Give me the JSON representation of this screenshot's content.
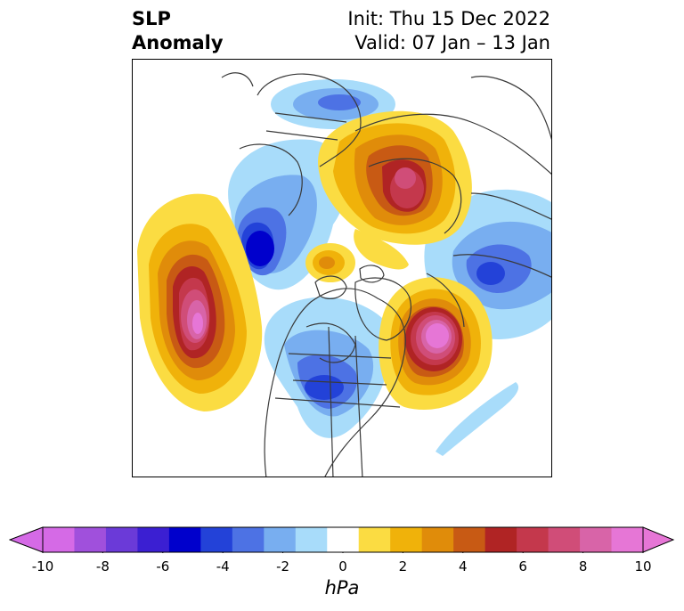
{
  "title": {
    "left_line1": "SLP",
    "left_line2": "Anomaly",
    "right_line1": "Init: Thu 15 Dec 2022",
    "right_line2": "Valid: 07 Jan – 13 Jan"
  },
  "colorbar": {
    "unit": "hPa",
    "ticks": [
      "-10",
      "-8",
      "-6",
      "-4",
      "-2",
      "0",
      "2",
      "4",
      "6",
      "8",
      "10"
    ],
    "levels": [
      -10,
      -9,
      -8,
      -7,
      -6,
      -5,
      -4,
      -3,
      -2,
      -1,
      1,
      2,
      3,
      4,
      5,
      6,
      7,
      8,
      9,
      10
    ],
    "colors": [
      "#d56ae6",
      "#a050dc",
      "#6b3ad8",
      "#3b1fd2",
      "#0000cc",
      "#2342d8",
      "#4d72e4",
      "#78aef0",
      "#a8dcfa",
      "#ffffff",
      "#fbdc42",
      "#f0b20a",
      "#e08c0a",
      "#c85a14",
      "#b02424",
      "#c4384c",
      "#d04d78",
      "#d864a8",
      "#e676d6"
    ],
    "extend": "both",
    "min_color": "#d56ae6",
    "max_color": "#e676d6"
  },
  "features": [
    {
      "name": "negative-anomaly-western-canada",
      "sign": "negative",
      "peak": -5
    },
    {
      "name": "negative-anomaly-central-us",
      "sign": "negative",
      "peak": -4
    },
    {
      "name": "negative-anomaly-russia",
      "sign": "negative",
      "peak": -5
    },
    {
      "name": "negative-anomaly-europe",
      "sign": "negative",
      "peak": -3
    },
    {
      "name": "positive-anomaly-north-pacific",
      "sign": "positive",
      "peak": 10
    },
    {
      "name": "positive-anomaly-north-atlantic",
      "sign": "positive",
      "peak": 10
    },
    {
      "name": "positive-anomaly-eastern-siberia",
      "sign": "positive",
      "peak": 7
    },
    {
      "name": "positive-anomaly-arctic",
      "sign": "positive",
      "peak": 4
    }
  ]
}
